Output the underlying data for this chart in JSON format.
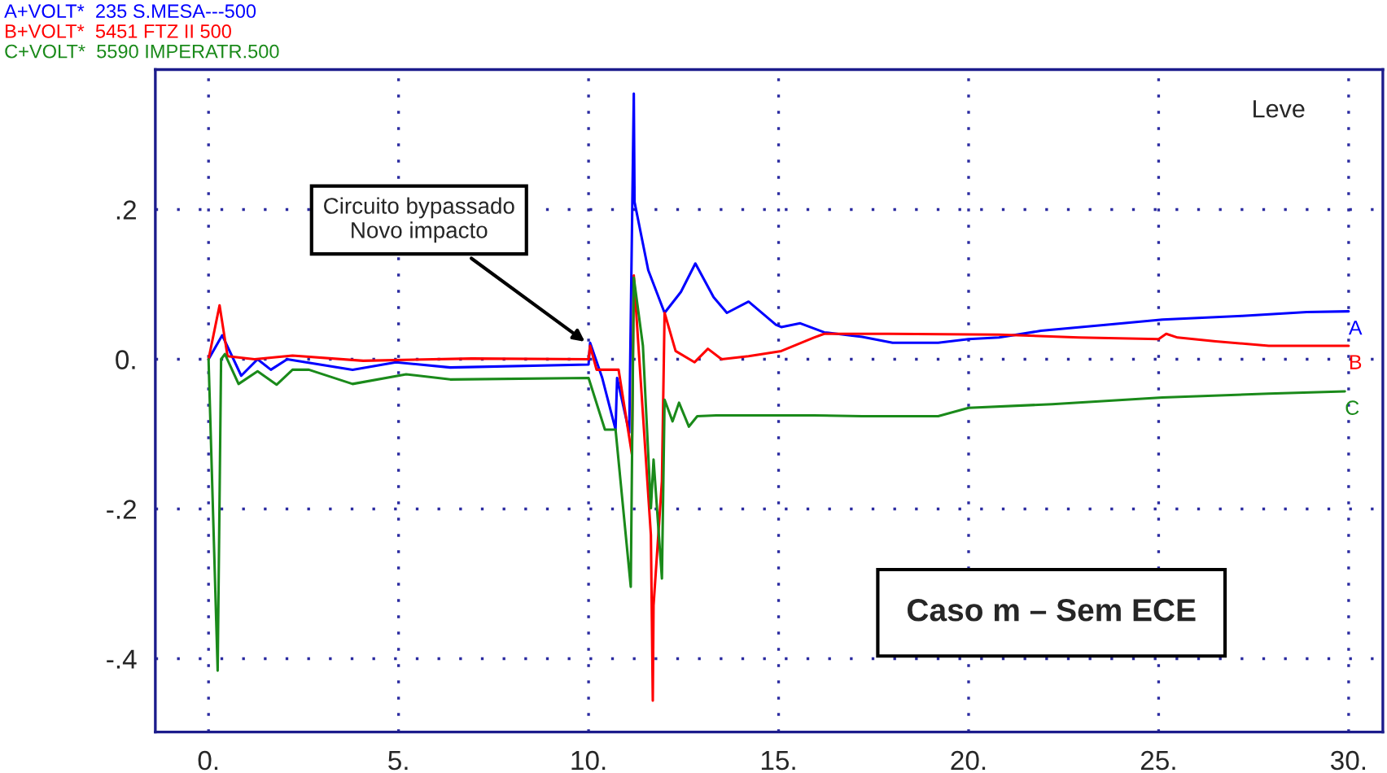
{
  "chart_data": {
    "type": "line",
    "legend": "top left",
    "grid": true,
    "line_style": "solid",
    "marker": "none",
    "xlim": [
      -1.4,
      30.9
    ],
    "ylim": [
      -0.498,
      0.387
    ],
    "xticks": [
      {
        "value": 0,
        "label": "0."
      },
      {
        "value": 5,
        "label": "5."
      },
      {
        "value": 10,
        "label": "10."
      },
      {
        "value": 15,
        "label": "15."
      },
      {
        "value": 20,
        "label": "20."
      },
      {
        "value": 25,
        "label": "25."
      },
      {
        "value": 30,
        "label": "30."
      }
    ],
    "yticks": [
      {
        "value": -0.4,
        "label": "-.4"
      },
      {
        "value": -0.2,
        "label": "-.2"
      },
      {
        "value": 0,
        "label": "0."
      },
      {
        "value": 0.2,
        "label": ".2"
      }
    ],
    "series": [
      {
        "name": "A+VOLT*  235 S.MESA---500",
        "color": "#0000ff",
        "x": [
          0,
          0.36,
          0.86,
          1.29,
          1.64,
          2.07,
          3.79,
          4.93,
          6.36,
          10.0,
          10.04,
          10.36,
          10.71,
          10.75,
          11.07,
          11.19,
          11.21,
          11.57,
          12.0,
          12.43,
          12.81,
          13.29,
          13.64,
          14.21,
          14.93,
          15.07,
          15.57,
          16.2,
          17.2,
          18.0,
          19.2,
          20.0,
          20.8,
          21.9,
          23.6,
          25.1,
          27.2,
          28.9,
          30.0
        ],
        "values": [
          0,
          0.032,
          -0.022,
          0.0,
          -0.014,
          0.0,
          -0.014,
          -0.004,
          -0.011,
          -0.007,
          0.022,
          -0.025,
          -0.094,
          -0.025,
          -0.098,
          0.355,
          0.21,
          0.119,
          0.062,
          0.09,
          0.128,
          0.083,
          0.062,
          0.077,
          0.046,
          0.043,
          0.048,
          0.036,
          0.03,
          0.022,
          0.022,
          0.027,
          0.029,
          0.038,
          0.046,
          0.053,
          0.058,
          0.063,
          0.064
        ]
      },
      {
        "name": "B+VOLT*  5451 FTZ II 500",
        "color": "#ff0000",
        "x": [
          0,
          0.29,
          0.5,
          1.21,
          2.21,
          4.07,
          6.93,
          10.0,
          10.04,
          10.21,
          10.79,
          11.14,
          11.19,
          11.64,
          11.69,
          11.71,
          11.93,
          12.0,
          12.29,
          12.79,
          13.14,
          13.5,
          14.21,
          15.07,
          15.93,
          16.2,
          17.9,
          20.8,
          22.9,
          25.0,
          25.2,
          25.5,
          26.5,
          27.9,
          30.0
        ],
        "values": [
          0,
          0.072,
          0.004,
          0.0,
          0.005,
          -0.002,
          0.001,
          0.0,
          0.018,
          -0.014,
          -0.014,
          -0.127,
          0.112,
          -0.235,
          -0.456,
          -0.329,
          -0.163,
          0.062,
          0.011,
          -0.004,
          0.014,
          0.0,
          0.004,
          0.011,
          0.029,
          0.034,
          0.034,
          0.033,
          0.029,
          0.027,
          0.034,
          0.029,
          0.024,
          0.018,
          0.018
        ]
      },
      {
        "name": "C+VOLT*  5590 IMPERATR.500",
        "color": "#1a8a1a",
        "x": [
          0,
          0.24,
          0.33,
          0.43,
          0.79,
          1.29,
          1.79,
          2.21,
          2.64,
          3.79,
          5.2,
          6.36,
          10.0,
          10.43,
          10.71,
          11.11,
          11.19,
          11.43,
          11.64,
          11.71,
          11.93,
          12.0,
          12.21,
          12.38,
          12.64,
          12.86,
          13.36,
          14.79,
          15.93,
          17.2,
          19.2,
          20.0,
          22.2,
          25.1,
          27.9,
          29.9
        ],
        "values": [
          0,
          -0.416,
          0.0,
          0.007,
          -0.033,
          -0.016,
          -0.034,
          -0.014,
          -0.014,
          -0.033,
          -0.02,
          -0.027,
          -0.025,
          -0.094,
          -0.094,
          -0.304,
          0.109,
          0.018,
          -0.199,
          -0.134,
          -0.293,
          -0.054,
          -0.083,
          -0.058,
          -0.09,
          -0.076,
          -0.075,
          -0.075,
          -0.075,
          -0.076,
          -0.076,
          -0.065,
          -0.06,
          -0.051,
          -0.046,
          -0.043
        ]
      }
    ],
    "annotations": [
      {
        "text": "Circuito bypassado\nNovo impacto",
        "x": 10.0,
        "y": 0.02
      },
      {
        "text": "A",
        "x": 30.0,
        "y": 0.064
      },
      {
        "text": "B",
        "x": 30.0,
        "y": 0.018
      },
      {
        "text": "C",
        "x": 29.9,
        "y": -0.043
      },
      "Leve",
      "Caso m – Sem ECE"
    ]
  }
}
